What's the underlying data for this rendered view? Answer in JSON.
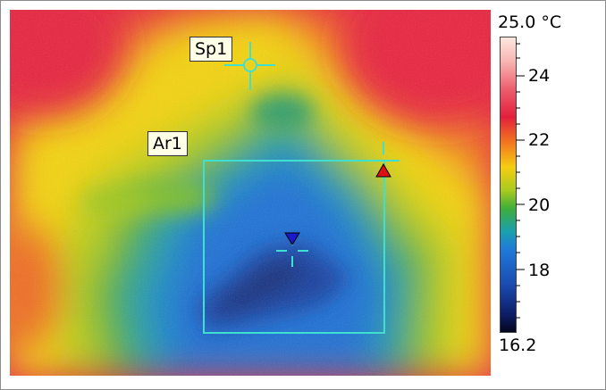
{
  "measurements": {
    "spot": {
      "label": "Sp1"
    },
    "area": {
      "label": "Ar1"
    }
  },
  "scale": {
    "max_label": "25.0 °C",
    "min_label": "16.2",
    "ticks": [
      "24",
      "22",
      "20",
      "18"
    ],
    "colors": {
      "hot_marker": "#dd1111",
      "cold_marker": "#1a1acc",
      "cursor": "#40e0d0",
      "tag_bg": "#ffffe8"
    }
  }
}
